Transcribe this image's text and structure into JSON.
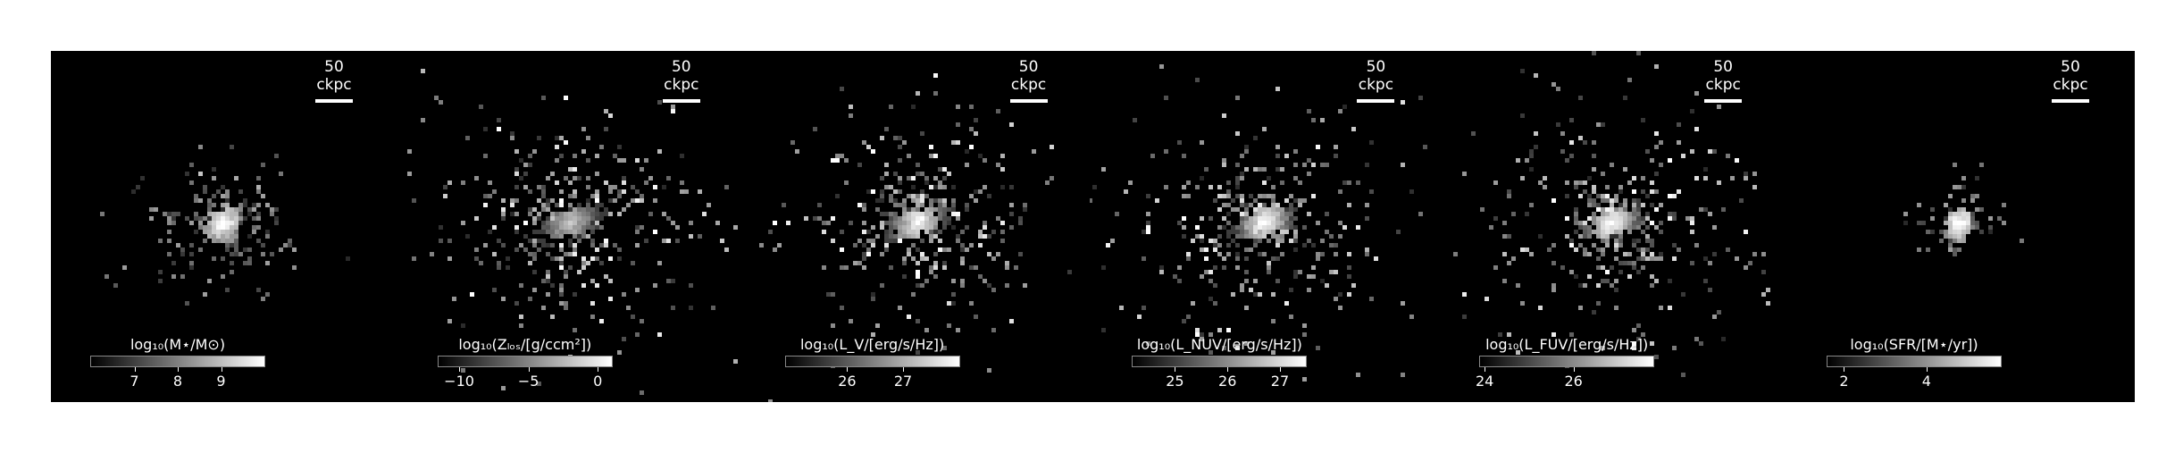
{
  "scale_bar_label": "50 ckpc",
  "panels": [
    {
      "id": "mstar",
      "label": "log₁₀(M⋆/M⊙)",
      "ticks": [
        {
          "v": 7,
          "t": "7"
        },
        {
          "v": 8,
          "t": "8"
        },
        {
          "v": 9,
          "t": "9"
        }
      ],
      "range": [
        6.0,
        10.0
      ],
      "spread": 0.9,
      "core": 1.0,
      "sat": 0.04
    },
    {
      "id": "zlos",
      "label": "log₁₀(Zₗₒₛ/[g/ccm²])",
      "ticks": [
        {
          "v": -10,
          "t": "−10"
        },
        {
          "v": -5,
          "t": "−5"
        },
        {
          "v": 0,
          "t": "0"
        }
      ],
      "range": [
        -11.5,
        1.0
      ],
      "spread": 1.7,
      "core": 0.75,
      "sat": 0.35
    },
    {
      "id": "lv",
      "label": "log₁₀(L_V/[erg/s/Hz])",
      "ticks": [
        {
          "v": 26,
          "t": "26"
        },
        {
          "v": 27,
          "t": "27"
        }
      ],
      "range": [
        24.9,
        28.0
      ],
      "spread": 1.6,
      "core": 1.0,
      "sat": 0.3
    },
    {
      "id": "lnuv",
      "label": "log₁₀(L_NUV/[erg/s/Hz])",
      "ticks": [
        {
          "v": 25,
          "t": "25"
        },
        {
          "v": 26,
          "t": "26"
        },
        {
          "v": 27,
          "t": "27"
        }
      ],
      "range": [
        24.2,
        27.5
      ],
      "spread": 1.7,
      "core": 1.0,
      "sat": 0.35
    },
    {
      "id": "lfuv",
      "label": "log₁₀(L_FUV/[erg/s/Hz])",
      "ticks": [
        {
          "v": 24,
          "t": "24"
        },
        {
          "v": 26,
          "t": "26"
        }
      ],
      "range": [
        23.9,
        27.8
      ],
      "spread": 1.7,
      "core": 1.0,
      "sat": 0.35
    },
    {
      "id": "sfr",
      "label": "log₁₀(SFR/[M⋆/yr])",
      "ticks": [
        {
          "v": 2,
          "t": "2"
        },
        {
          "v": 4,
          "t": "4"
        }
      ],
      "range": [
        1.6,
        5.8
      ],
      "spread": 0.45,
      "core": 1.0,
      "sat": 0.0
    }
  ]
}
